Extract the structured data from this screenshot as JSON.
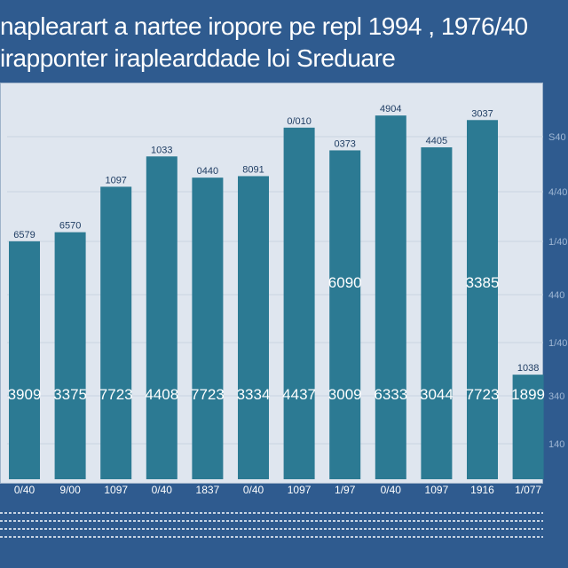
{
  "header": {
    "title_line1": "naplearart a nartee iropore pe repl   1994 , 1976/40",
    "title_line2": "irapponter iraplearddade loi Sreduare"
  },
  "colors": {
    "background": "#2f5b8f",
    "panel": "#dfe6ef",
    "bar": "#2c7a93",
    "text_dark": "#1f3d63"
  },
  "chart_data": {
    "type": "bar",
    "title": "naplearart a nartee iropore pe repl   1994 , 1976/40",
    "subtitle": "irapponter iraplearddade loi Sreduare",
    "categories": [
      "0/40",
      "9/00",
      "1097",
      "0/40",
      "1837",
      "0/40",
      "1097",
      "1/97",
      "0/40",
      "1097",
      "1916",
      "1/077"
    ],
    "values": [
      1570,
      1630,
      1930,
      2130,
      1990,
      2000,
      2320,
      2170,
      2400,
      2190,
      2370,
      690
    ],
    "top_labels": [
      "6579",
      "6570",
      "1097",
      "1033",
      "0440",
      "8091",
      "0/010",
      "0373",
      "4904",
      "4405",
      "3037",
      "1038"
    ],
    "inner_labels": [
      "3909",
      "3375",
      "7723",
      "4408",
      "7723",
      "3334",
      "4437",
      "3009",
      "6333",
      "3044",
      "7723",
      "1899"
    ],
    "mid_labels": [
      {
        "index": 7,
        "text": "6090"
      },
      {
        "index": 10,
        "text": "3385"
      }
    ],
    "right_tick_labels": [
      "S40",
      "4/40",
      "1/40",
      "440",
      "1/40",
      "340",
      "140"
    ],
    "ylim": [
      0,
      2600
    ],
    "grid": true,
    "xlabel": "",
    "ylabel": ""
  }
}
